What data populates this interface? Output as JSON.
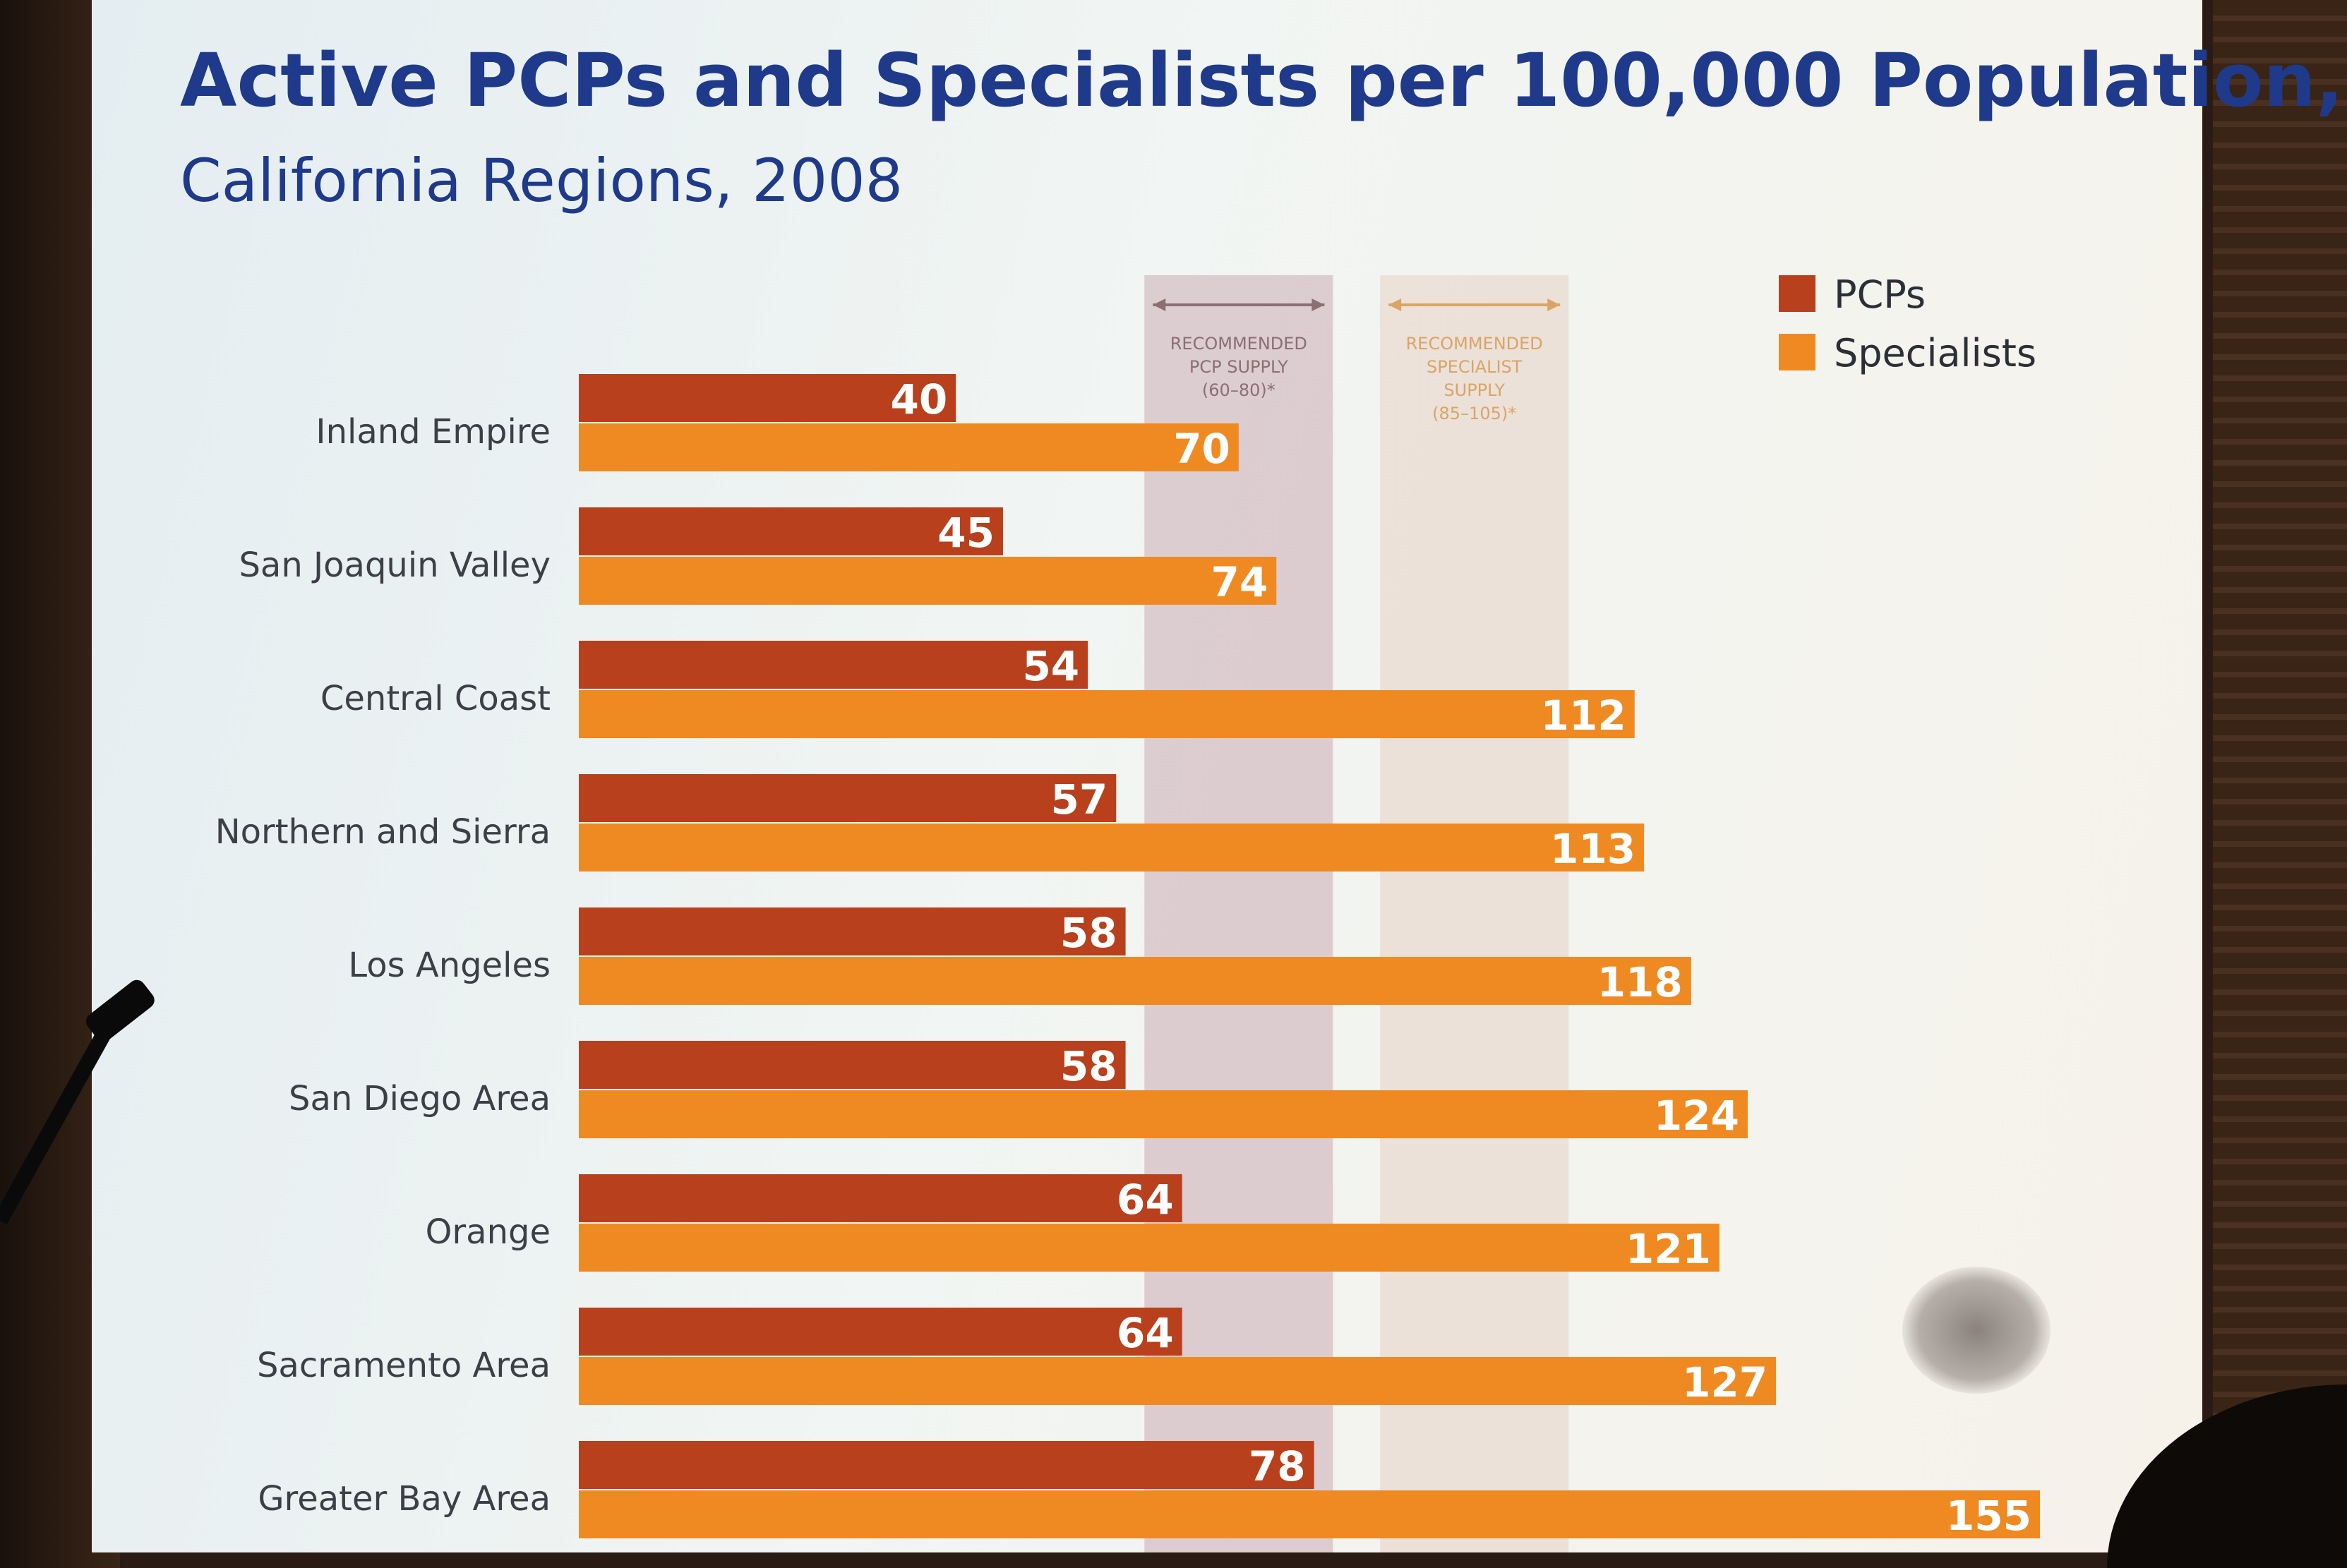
{
  "chart_data": {
    "type": "bar",
    "orientation": "horizontal",
    "title": "Active PCPs and Specialists per 100,000 Population,",
    "subtitle": "California Regions, 2008",
    "categories": [
      "Inland Empire",
      "San Joaquin Valley",
      "Central Coast",
      "Northern and Sierra",
      "Los Angeles",
      "San Diego Area",
      "Orange",
      "Sacramento Area",
      "Greater Bay Area"
    ],
    "series": [
      {
        "name": "PCPs",
        "color": "#b8401c",
        "values": [
          40,
          45,
          54,
          57,
          58,
          58,
          64,
          64,
          78
        ]
      },
      {
        "name": "Specialists",
        "color": "#ef8a22",
        "values": [
          70,
          74,
          112,
          113,
          118,
          124,
          121,
          127,
          155
        ]
      }
    ],
    "xlim": [
      0,
      155
    ],
    "reference_bands": [
      {
        "label_lines": [
          "RECOMMENDED",
          "PCP SUPPLY",
          "(60–80)*"
        ],
        "range": [
          60,
          80
        ],
        "color": "#d4bfc4",
        "text_color": "#8a6f74"
      },
      {
        "label_lines": [
          "RECOMMENDED",
          "SPECIALIST",
          "SUPPLY",
          "(85–105)*"
        ],
        "range": [
          85,
          105
        ],
        "color": "#eadbd0",
        "text_color": "#d9a466"
      }
    ],
    "legend": {
      "position": "top-right",
      "entries": [
        "PCPs",
        "Specialists"
      ]
    }
  }
}
